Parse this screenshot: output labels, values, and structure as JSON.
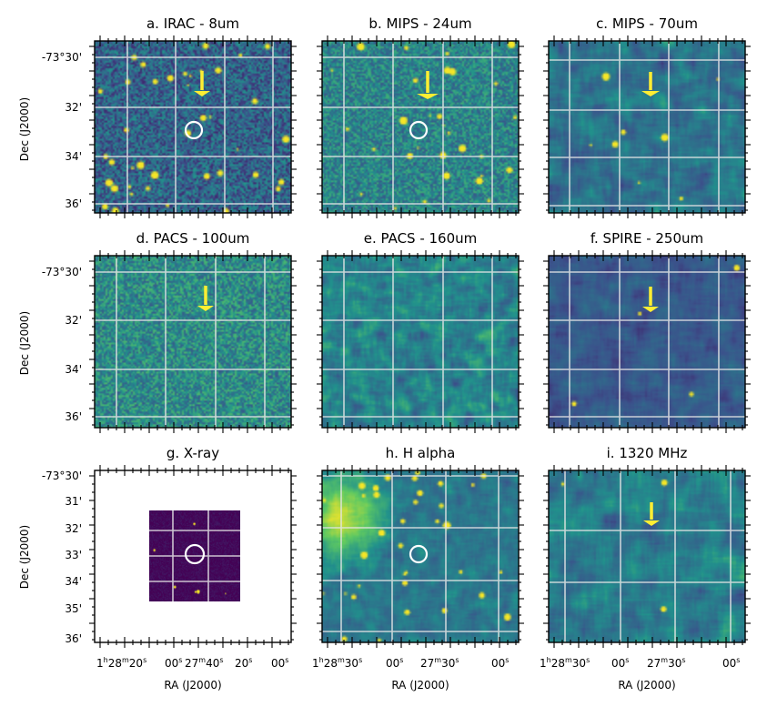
{
  "figure": {
    "y_axis_label": "Dec (J2000)",
    "x_axis_label": "RA (J2000)",
    "colors": {
      "background": "#ffffff",
      "grid": "#e6e6e6",
      "marker": "#ffee33",
      "circle": "#ffffff",
      "cmap_low": "#45055a",
      "cmap_mid": "#26808c",
      "cmap_high": "#f2e01e"
    }
  },
  "y_ticks_standard": [
    "-73°30'",
    "32'",
    "34'",
    "36'"
  ],
  "y_ticks_bottom_row": [
    "-73°30'",
    "31'",
    "32'",
    "33'",
    "34'",
    "35'",
    "36'"
  ],
  "x_ticks": {
    "g": {
      "h": "1",
      "hs": "h",
      "m": "28",
      "ms": "m",
      "s": "20",
      "ss": "s",
      "t2": "00",
      "t2s": "s",
      "m2": "27",
      "m2s": "m",
      "s2": "40",
      "s2s": "s",
      "t4": "20",
      "t4s": "s",
      "t5": "00",
      "t5s": "s"
    },
    "h": {
      "h": "1",
      "hs": "h",
      "m": "28",
      "ms": "m",
      "s": "30",
      "ss": "s",
      "t2": "00",
      "t2s": "s",
      "m2": "27",
      "m2s": "m",
      "s2": "30",
      "s2s": "s",
      "t4": "00",
      "t4s": "s"
    },
    "i": {
      "h": "1",
      "hs": "h",
      "m": "28",
      "ms": "m",
      "s": "30",
      "ss": "s",
      "t2": "00",
      "t2s": "s",
      "m2": "27",
      "m2s": "m",
      "s2": "30",
      "s2s": "s",
      "t4": "00",
      "t4s": "s"
    }
  },
  "panels": [
    {
      "id": "a",
      "title": "a. IRAC - 8um",
      "arrow": true,
      "circle": true,
      "base": 0.32,
      "noise": 0.2,
      "blur": 1,
      "sources": 40
    },
    {
      "id": "b",
      "title": "b. MIPS - 24um",
      "arrow": true,
      "circle": true,
      "base": 0.45,
      "noise": 0.18,
      "blur": 1,
      "sources": 30
    },
    {
      "id": "c",
      "title": "c. MIPS - 70um",
      "arrow": true,
      "circle": false,
      "base": 0.38,
      "noise": 0.18,
      "blur": 3,
      "sources": 8
    },
    {
      "id": "d",
      "title": "d. PACS - 100um",
      "arrow": true,
      "circle": false,
      "base": 0.48,
      "noise": 0.2,
      "blur": 1,
      "sources": 0
    },
    {
      "id": "e",
      "title": "e. PACS - 160um",
      "arrow": false,
      "circle": false,
      "base": 0.45,
      "noise": 0.2,
      "blur": 2,
      "sources": 0
    },
    {
      "id": "f",
      "title": "f. SPIRE - 250um",
      "arrow": true,
      "circle": false,
      "base": 0.28,
      "noise": 0.12,
      "blur": 3,
      "sources": 4
    },
    {
      "id": "g",
      "title": "g. X-ray",
      "arrow": false,
      "circle": true,
      "base": 0.02,
      "noise": 0.06,
      "blur": 1,
      "sources": 6
    },
    {
      "id": "h",
      "title": "h. H alpha",
      "arrow": false,
      "circle": true,
      "base": 0.4,
      "noise": 0.12,
      "blur": 2,
      "sources": 35
    },
    {
      "id": "i",
      "title": "i. 1320 MHz",
      "arrow": true,
      "circle": false,
      "base": 0.42,
      "noise": 0.2,
      "blur": 4,
      "sources": 3
    }
  ]
}
